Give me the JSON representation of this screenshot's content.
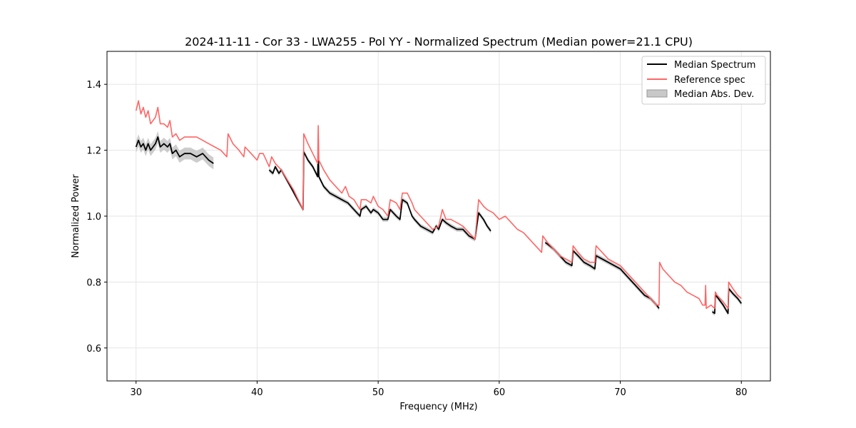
{
  "chart_data": {
    "type": "line",
    "title": "2024-11-11 - Cor 33 - LWA255 - Pol YY - Normalized Spectrum (Median power=21.1 CPU)",
    "xlabel": "Frequency (MHz)",
    "ylabel": "Normalized Power",
    "xlim": [
      27.6,
      82.4
    ],
    "ylim": [
      0.5,
      1.5
    ],
    "xticks": [
      30,
      40,
      50,
      60,
      70,
      80
    ],
    "yticks": [
      0.6,
      0.8,
      1.0,
      1.2,
      1.4
    ],
    "xtick_labels": [
      "30",
      "40",
      "50",
      "60",
      "70",
      "80"
    ],
    "ytick_labels": [
      "0.6",
      "0.8",
      "1.0",
      "1.2",
      "1.4"
    ],
    "grid": true,
    "legend_position": "top-right",
    "legend": [
      "Median Spectrum",
      "Reference spec",
      "Median Abs. Dev."
    ],
    "colors": {
      "median": "#000000",
      "reference": "#ff6666",
      "mad": "#c0c0c0",
      "grid": "#e5e5e5"
    },
    "series": [
      {
        "name": "Reference spec",
        "segments": [
          [
            [
              30.0,
              1.32
            ],
            [
              30.2,
              1.35
            ],
            [
              30.4,
              1.31
            ],
            [
              30.6,
              1.33
            ],
            [
              30.8,
              1.3
            ],
            [
              31.0,
              1.32
            ],
            [
              31.2,
              1.28
            ],
            [
              31.4,
              1.29
            ],
            [
              31.6,
              1.3
            ],
            [
              31.8,
              1.33
            ],
            [
              32.0,
              1.28
            ],
            [
              32.3,
              1.28
            ],
            [
              32.6,
              1.27
            ],
            [
              32.8,
              1.29
            ],
            [
              33.0,
              1.24
            ],
            [
              33.3,
              1.25
            ],
            [
              33.6,
              1.23
            ],
            [
              34.0,
              1.24
            ],
            [
              35.0,
              1.24
            ],
            [
              35.5,
              1.23
            ],
            [
              36.0,
              1.22
            ],
            [
              36.5,
              1.21
            ],
            [
              37.0,
              1.2
            ],
            [
              37.5,
              1.18
            ],
            [
              37.6,
              1.25
            ],
            [
              38.0,
              1.22
            ],
            [
              38.5,
              1.2
            ],
            [
              38.9,
              1.18
            ],
            [
              39.0,
              1.21
            ],
            [
              39.5,
              1.19
            ],
            [
              40.0,
              1.17
            ],
            [
              40.2,
              1.19
            ],
            [
              40.5,
              1.19
            ],
            [
              41.0,
              1.15
            ],
            [
              41.2,
              1.18
            ],
            [
              41.5,
              1.16
            ],
            [
              42.0,
              1.14
            ],
            [
              42.5,
              1.11
            ],
            [
              43.0,
              1.08
            ],
            [
              43.4,
              1.05
            ],
            [
              43.8,
              1.02
            ],
            [
              43.85,
              1.25
            ],
            [
              44.2,
              1.22
            ],
            [
              44.6,
              1.19
            ],
            [
              45.0,
              1.16
            ],
            [
              45.05,
              1.275
            ],
            [
              45.1,
              1.17
            ],
            [
              45.5,
              1.14
            ],
            [
              46.0,
              1.11
            ],
            [
              46.5,
              1.09
            ],
            [
              47.0,
              1.07
            ],
            [
              47.3,
              1.09
            ],
            [
              47.6,
              1.06
            ],
            [
              48.0,
              1.05
            ],
            [
              48.5,
              1.02
            ],
            [
              48.6,
              1.05
            ],
            [
              49.0,
              1.05
            ],
            [
              49.4,
              1.04
            ],
            [
              49.6,
              1.06
            ],
            [
              50.0,
              1.03
            ],
            [
              50.4,
              1.02
            ],
            [
              50.8,
              1.0
            ],
            [
              51.0,
              1.05
            ],
            [
              51.5,
              1.04
            ],
            [
              51.8,
              1.02
            ],
            [
              52.0,
              1.07
            ],
            [
              52.4,
              1.07
            ],
            [
              52.8,
              1.04
            ],
            [
              53.0,
              1.02
            ],
            [
              53.5,
              1.0
            ],
            [
              54.0,
              0.98
            ],
            [
              54.5,
              0.96
            ],
            [
              55.0,
              0.97
            ],
            [
              55.3,
              1.02
            ],
            [
              55.6,
              0.99
            ],
            [
              56.0,
              0.99
            ],
            [
              56.5,
              0.98
            ],
            [
              57.0,
              0.97
            ],
            [
              57.5,
              0.95
            ],
            [
              58.0,
              0.93
            ],
            [
              58.3,
              1.05
            ],
            [
              58.7,
              1.03
            ],
            [
              59.0,
              1.02
            ],
            [
              59.5,
              1.01
            ],
            [
              60.0,
              0.99
            ],
            [
              60.5,
              1.0
            ],
            [
              61.0,
              0.98
            ],
            [
              61.5,
              0.96
            ],
            [
              62.0,
              0.95
            ],
            [
              62.5,
              0.93
            ],
            [
              63.0,
              0.91
            ],
            [
              63.5,
              0.89
            ],
            [
              63.6,
              0.94
            ],
            [
              64.0,
              0.92
            ],
            [
              64.5,
              0.9
            ],
            [
              65.0,
              0.88
            ],
            [
              65.5,
              0.87
            ],
            [
              66.0,
              0.86
            ],
            [
              66.1,
              0.91
            ],
            [
              66.5,
              0.89
            ],
            [
              67.0,
              0.87
            ],
            [
              67.5,
              0.86
            ],
            [
              67.9,
              0.86
            ],
            [
              68.0,
              0.91
            ],
            [
              68.5,
              0.89
            ],
            [
              69.0,
              0.87
            ],
            [
              69.5,
              0.86
            ],
            [
              70.0,
              0.85
            ],
            [
              70.5,
              0.83
            ],
            [
              71.0,
              0.81
            ],
            [
              71.5,
              0.79
            ],
            [
              72.0,
              0.77
            ],
            [
              72.5,
              0.75
            ],
            [
              73.0,
              0.73
            ],
            [
              73.2,
              0.73
            ],
            [
              73.25,
              0.86
            ],
            [
              73.5,
              0.84
            ],
            [
              74.0,
              0.82
            ],
            [
              74.5,
              0.8
            ],
            [
              75.0,
              0.79
            ],
            [
              75.5,
              0.77
            ],
            [
              76.0,
              0.76
            ],
            [
              76.5,
              0.75
            ],
            [
              76.8,
              0.73
            ],
            [
              77.0,
              0.73
            ],
            [
              77.05,
              0.79
            ],
            [
              77.1,
              0.72
            ],
            [
              77.5,
              0.73
            ],
            [
              77.8,
              0.72
            ],
            [
              77.85,
              0.77
            ],
            [
              78.0,
              0.76
            ],
            [
              78.5,
              0.74
            ],
            [
              78.9,
              0.72
            ],
            [
              78.95,
              0.8
            ],
            [
              79.3,
              0.78
            ],
            [
              79.7,
              0.76
            ],
            [
              80.0,
              0.75
            ]
          ]
        ]
      },
      {
        "name": "Median Spectrum",
        "segments": [
          [
            [
              30.0,
              1.21
            ],
            [
              30.2,
              1.23
            ],
            [
              30.4,
              1.21
            ],
            [
              30.6,
              1.22
            ],
            [
              30.8,
              1.2
            ],
            [
              31.0,
              1.22
            ],
            [
              31.2,
              1.2
            ],
            [
              31.4,
              1.21
            ],
            [
              31.6,
              1.22
            ],
            [
              31.8,
              1.24
            ],
            [
              32.0,
              1.21
            ],
            [
              32.3,
              1.22
            ],
            [
              32.6,
              1.21
            ],
            [
              32.8,
              1.22
            ],
            [
              33.0,
              1.19
            ],
            [
              33.3,
              1.2
            ],
            [
              33.6,
              1.18
            ],
            [
              34.0,
              1.19
            ],
            [
              34.5,
              1.19
            ],
            [
              35.0,
              1.18
            ],
            [
              35.5,
              1.19
            ],
            [
              36.0,
              1.17
            ],
            [
              36.4,
              1.16
            ]
          ],
          [
            [
              41.0,
              1.14
            ],
            [
              41.3,
              1.13
            ],
            [
              41.5,
              1.15
            ],
            [
              41.8,
              1.13
            ],
            [
              42.0,
              1.14
            ],
            [
              42.3,
              1.12
            ],
            [
              42.6,
              1.1
            ],
            [
              42.9,
              1.08
            ],
            [
              43.2,
              1.06
            ],
            [
              43.5,
              1.04
            ],
            [
              43.8,
              1.02
            ],
            [
              43.85,
              1.195
            ],
            [
              44.2,
              1.17
            ],
            [
              44.6,
              1.15
            ],
            [
              45.0,
              1.12
            ],
            [
              45.05,
              1.2
            ],
            [
              45.1,
              1.12
            ],
            [
              45.5,
              1.09
            ],
            [
              46.0,
              1.07
            ],
            [
              46.5,
              1.06
            ],
            [
              47.0,
              1.05
            ],
            [
              47.5,
              1.04
            ],
            [
              48.0,
              1.02
            ],
            [
              48.5,
              1.0
            ],
            [
              48.6,
              1.02
            ],
            [
              49.0,
              1.03
            ],
            [
              49.4,
              1.01
            ],
            [
              49.6,
              1.02
            ],
            [
              50.0,
              1.01
            ],
            [
              50.4,
              0.99
            ],
            [
              50.8,
              0.99
            ],
            [
              51.0,
              1.02
            ],
            [
              51.5,
              1.0
            ],
            [
              51.8,
              0.99
            ],
            [
              52.0,
              1.05
            ],
            [
              52.4,
              1.04
            ],
            [
              52.8,
              1.0
            ],
            [
              53.0,
              0.99
            ],
            [
              53.5,
              0.97
            ],
            [
              54.0,
              0.96
            ],
            [
              54.5,
              0.95
            ],
            [
              54.8,
              0.97
            ],
            [
              55.0,
              0.96
            ],
            [
              55.3,
              0.99
            ],
            [
              55.6,
              0.98
            ],
            [
              56.0,
              0.97
            ],
            [
              56.5,
              0.96
            ],
            [
              57.0,
              0.96
            ],
            [
              57.5,
              0.94
            ],
            [
              58.0,
              0.93
            ],
            [
              58.3,
              1.01
            ],
            [
              58.7,
              0.99
            ],
            [
              59.0,
              0.97
            ],
            [
              59.3,
              0.955
            ]
          ],
          [
            [
              63.8,
              0.92
            ],
            [
              64.0,
              0.915
            ],
            [
              64.5,
              0.9
            ],
            [
              65.0,
              0.88
            ],
            [
              65.5,
              0.86
            ],
            [
              66.0,
              0.85
            ],
            [
              66.1,
              0.895
            ],
            [
              66.5,
              0.88
            ],
            [
              67.0,
              0.86
            ],
            [
              67.5,
              0.85
            ],
            [
              67.9,
              0.84
            ],
            [
              68.0,
              0.88
            ],
            [
              68.5,
              0.87
            ],
            [
              69.0,
              0.86
            ],
            [
              69.5,
              0.85
            ],
            [
              70.0,
              0.84
            ],
            [
              70.5,
              0.82
            ],
            [
              71.0,
              0.8
            ],
            [
              71.5,
              0.78
            ],
            [
              72.0,
              0.76
            ],
            [
              72.5,
              0.75
            ],
            [
              73.0,
              0.73
            ],
            [
              73.2,
              0.72
            ]
          ],
          [
            [
              77.6,
              0.71
            ],
            [
              77.8,
              0.705
            ],
            [
              77.85,
              0.76
            ],
            [
              78.0,
              0.755
            ],
            [
              78.5,
              0.73
            ],
            [
              78.9,
              0.705
            ],
            [
              78.95,
              0.78
            ],
            [
              79.3,
              0.765
            ],
            [
              79.7,
              0.75
            ],
            [
              80.0,
              0.735
            ]
          ]
        ]
      }
    ],
    "mad_halfwidth": {
      "segment_1": 0.018,
      "other_segments": 0.007
    }
  }
}
